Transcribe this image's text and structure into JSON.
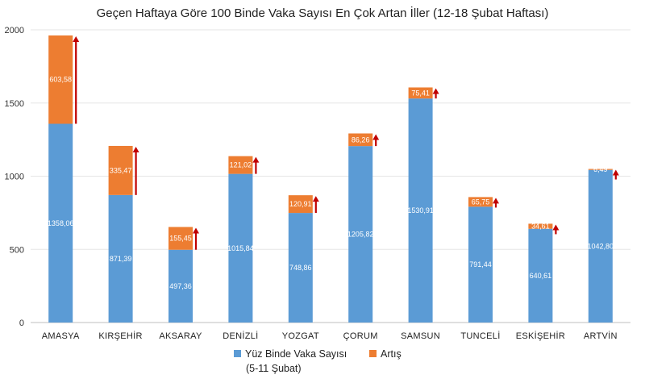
{
  "chart_data": {
    "type": "bar",
    "stacked": true,
    "title": "Geçen Haftaya Göre 100 Binde Vaka Sayısı En Çok Artan İller (12-18 Şubat Haftası)",
    "xlabel": "",
    "ylabel": "",
    "categories": [
      "AMASYA",
      "KIRŞEHİR",
      "AKSARAY",
      "DENİZLİ",
      "YOZGAT",
      "ÇORUM",
      "SAMSUN",
      "TUNCELİ",
      "ESKİŞEHİR",
      "ARTVİN"
    ],
    "series": [
      {
        "name": "Yüz Binde Vaka Sayısı",
        "name_line2": "(5-11 Şubat)",
        "color": "#5B9BD5",
        "values": [
          1358.06,
          871.39,
          497.36,
          1015.84,
          748.86,
          1205.82,
          1530.91,
          791.44,
          640.61,
          1042.8
        ],
        "labels": [
          "1358,06",
          "871,39",
          "497,36",
          "1015,84",
          "748,86",
          "1205,82",
          "1530,91",
          "791,44",
          "640,61",
          "1042,80"
        ]
      },
      {
        "name": "Artış",
        "color": "#ED7D31",
        "values": [
          603.58,
          335.47,
          155.45,
          121.02,
          120.91,
          86.26,
          75.41,
          65.75,
          34.61,
          6.49
        ],
        "labels": [
          "603,58",
          "335,47",
          "155,45",
          "121,02",
          "120,91",
          "86,26",
          "75,41",
          "65,75",
          "34,61",
          "6,49"
        ]
      }
    ],
    "ylim": [
      0,
      2000
    ],
    "yticks": [
      0,
      500,
      1000,
      1500,
      2000
    ],
    "grid": true,
    "legend_position": "bottom",
    "arrow_color": "#C00000"
  }
}
